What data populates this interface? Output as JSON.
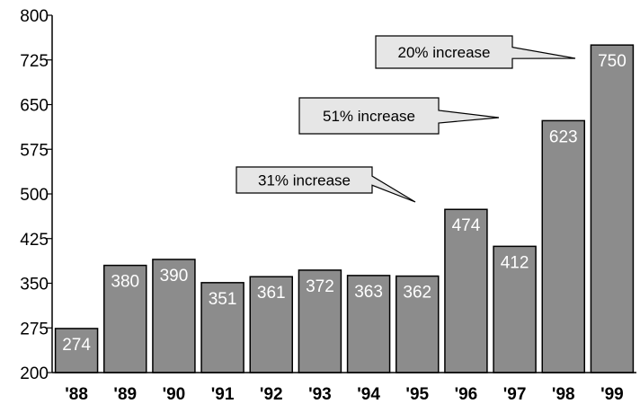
{
  "chart_data": {
    "type": "bar",
    "title": "",
    "xlabel": "",
    "ylabel": "",
    "categories": [
      "'88",
      "'89",
      "'90",
      "'91",
      "'92",
      "'93",
      "'94",
      "'95",
      "'96",
      "'97",
      "'98",
      "'99"
    ],
    "values": [
      274,
      380,
      390,
      351,
      361,
      372,
      363,
      362,
      474,
      412,
      623,
      750
    ],
    "ylim": [
      200,
      800
    ],
    "yticks": [
      200,
      275,
      350,
      425,
      500,
      575,
      650,
      725,
      800
    ],
    "grid": false,
    "bar_color": "#8c8c8c",
    "data_label_color": "#ffffff",
    "callout_color": "#e6e6e6",
    "annotations": [
      {
        "text": "31% increase",
        "points_to": "'96"
      },
      {
        "text": "51% increase",
        "points_to": "'98"
      },
      {
        "text": "20% increase",
        "points_to": "'99"
      }
    ]
  }
}
